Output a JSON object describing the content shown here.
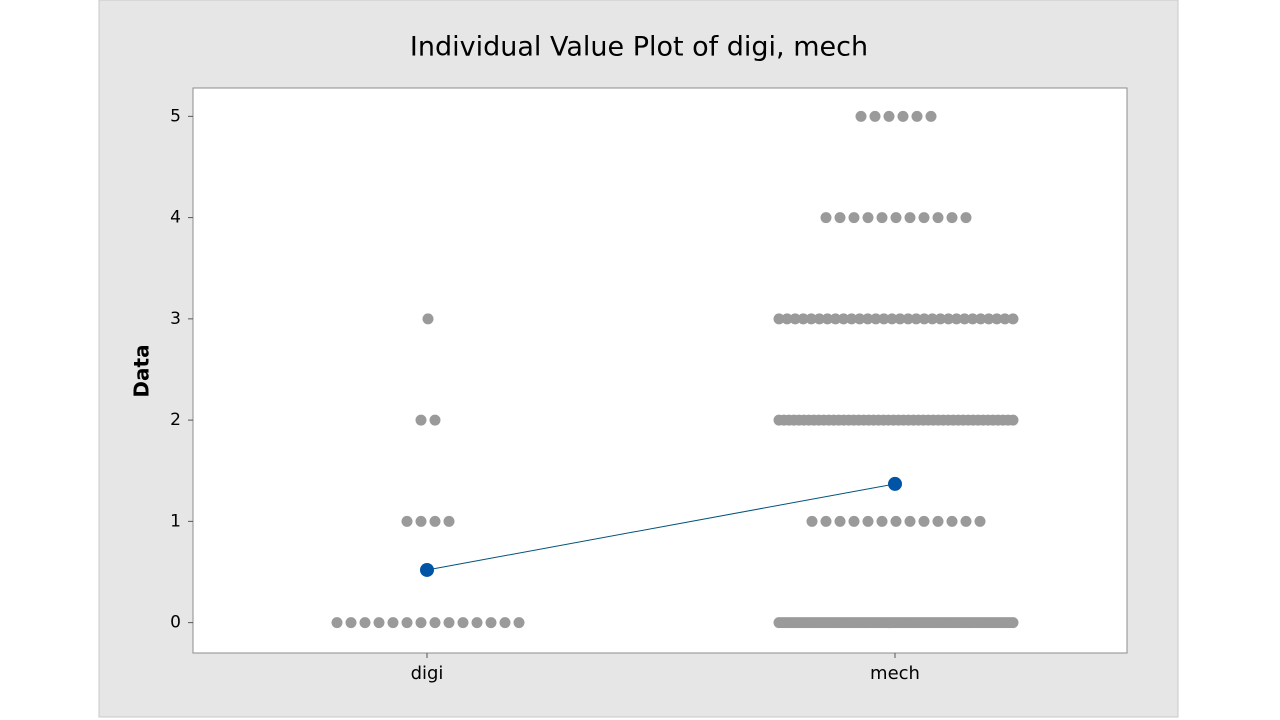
{
  "chart_data": {
    "type": "individual-value",
    "title": "Individual Value Plot of digi, mech",
    "y_label": "Data",
    "categories": [
      "digi",
      "mech"
    ],
    "series": [
      {
        "name": "digi",
        "color": "#9a9a9a",
        "points": [
          {
            "y": 0,
            "n": 14
          },
          {
            "y": 1,
            "n": 4
          },
          {
            "y": 2,
            "n": 2
          },
          {
            "y": 3,
            "n": 1
          }
        ]
      },
      {
        "name": "mech",
        "color": "#9a9a9a",
        "points": [
          {
            "y": 0,
            "n": 91
          },
          {
            "y": 1,
            "n": 13
          },
          {
            "y": 2,
            "n": 48
          },
          {
            "y": 3,
            "n": 30
          },
          {
            "y": 4,
            "n": 11
          },
          {
            "y": 5,
            "n": 6
          }
        ]
      }
    ],
    "means": [
      0.52,
      1.37
    ],
    "mean_color": "#0054a6",
    "mean_line_color": "#00527a",
    "ylim": [
      -0.3,
      5.28
    ],
    "yticks": [
      0,
      1,
      2,
      3,
      4,
      5
    ]
  }
}
